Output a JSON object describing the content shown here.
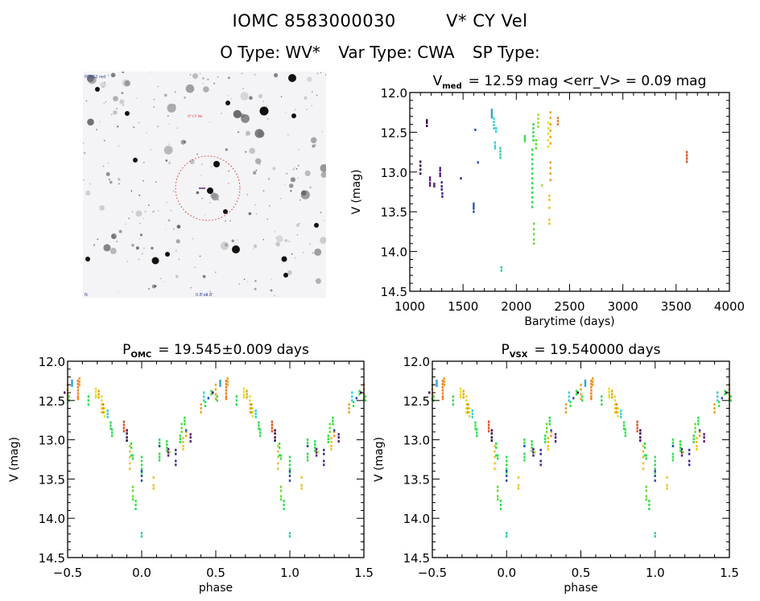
{
  "header": {
    "object_id": "IOMC 8583000030",
    "object_name": "V* CY Vel",
    "o_type_label": "O Type: WV*",
    "var_type_label": "Var Type: CWA",
    "sp_type_label": "SP Type:"
  },
  "finder_chart": {
    "label_top_left": "POSS2 red",
    "label_bottom_left": "N",
    "label_bottom_center": "0.8'x0.8'",
    "marker_label": "V* CY Vel",
    "circle_color": "#e03030",
    "marker_color": "#602080"
  },
  "colors": [
    "#3a0a4a",
    "#5a1a7a",
    "#3a2a9a",
    "#2a50b0",
    "#2aa0d0",
    "#30d0e0",
    "#30d090",
    "#30e050",
    "#60e030",
    "#a0e030",
    "#e0e020",
    "#f0c020",
    "#f0a020",
    "#f08020",
    "#e05020"
  ],
  "chart_data": [
    {
      "type": "scatter",
      "id": "lightcurve",
      "title_main": "V",
      "title_sub": "med",
      "title_rest": "= 12.59 mag <err_V> = 0.09 mag",
      "xlabel": "Barytime (days)",
      "ylabel": "V (mag)",
      "xlim": [
        1000,
        4000
      ],
      "ylim": [
        14.5,
        12.0
      ],
      "xticks": [
        1000,
        1500,
        2000,
        2500,
        3000,
        3500,
        4000
      ],
      "yticks": [
        12.0,
        12.5,
        13.0,
        13.5,
        14.0,
        14.5
      ],
      "ytick_labels": [
        "12.0",
        "12.5",
        "13.0",
        "13.5",
        "14.0",
        "14.5"
      ],
      "grid": false,
      "points": [
        {
          "x": 1100,
          "y": [
            12.87,
            12.92,
            12.97,
            13.02
          ],
          "c": 0
        },
        {
          "x": 1160,
          "y": [
            12.35,
            12.38,
            12.42
          ],
          "c": 0
        },
        {
          "x": 1190,
          "y": [
            13.07,
            13.1,
            13.14,
            13.17
          ],
          "c": 1
        },
        {
          "x": 1230,
          "y": [
            13.15,
            13.18
          ],
          "c": 1
        },
        {
          "x": 1285,
          "y": [
            12.95,
            12.98,
            13.02,
            13.05
          ],
          "c": 1
        },
        {
          "x": 1300,
          "y": [
            13.13,
            13.18,
            13.22
          ],
          "c": 2
        },
        {
          "x": 1305,
          "y": [
            13.27,
            13.31
          ],
          "c": 2
        },
        {
          "x": 1480,
          "y": [
            13.08
          ],
          "c": 2
        },
        {
          "x": 1600,
          "y": [
            13.4,
            13.43,
            13.46,
            13.5
          ],
          "c": 3
        },
        {
          "x": 1615,
          "y": [
            12.47
          ],
          "c": 3
        },
        {
          "x": 1640,
          "y": [
            12.88
          ],
          "c": 3
        },
        {
          "x": 1770,
          "y": [
            12.22,
            12.25,
            12.28,
            12.31
          ],
          "c": 4
        },
        {
          "x": 1790,
          "y": [
            12.33,
            12.37,
            12.41,
            12.45
          ],
          "c": 5
        },
        {
          "x": 1810,
          "y": [
            12.45,
            12.49
          ],
          "c": 5
        },
        {
          "x": 1800,
          "y": [
            12.63,
            12.67,
            12.7
          ],
          "c": 5
        },
        {
          "x": 1850,
          "y": [
            12.7,
            12.74,
            12.78,
            12.82
          ],
          "c": 6
        },
        {
          "x": 1860,
          "y": [
            14.2,
            14.24
          ],
          "c": 6
        },
        {
          "x": 2080,
          "y": [
            12.55,
            12.58,
            12.61
          ],
          "c": 7
        },
        {
          "x": 2150,
          "y": [
            12.72,
            12.78,
            12.84,
            12.9,
            12.96,
            13.02,
            13.08,
            13.14,
            13.2,
            13.26,
            13.32,
            13.38,
            13.44
          ],
          "c": 7
        },
        {
          "x": 2160,
          "y": [
            12.4,
            12.45,
            12.5,
            12.55,
            12.6
          ],
          "c": 7
        },
        {
          "x": 2165,
          "y": [
            13.65,
            13.72,
            13.78,
            13.85,
            13.9
          ],
          "c": 8
        },
        {
          "x": 2185,
          "y": [
            12.6,
            12.65,
            12.7
          ],
          "c": 8
        },
        {
          "x": 2205,
          "y": [
            12.28,
            12.33,
            12.38,
            12.43
          ],
          "c": 9
        },
        {
          "x": 2240,
          "y": [
            13.17
          ],
          "c": 9
        },
        {
          "x": 2300,
          "y": [
            12.38,
            12.45,
            12.52,
            12.6,
            12.68
          ],
          "c": 10
        },
        {
          "x": 2310,
          "y": [
            13.3,
            13.35,
            13.45,
            13.6,
            13.65
          ],
          "c": 11
        },
        {
          "x": 2320,
          "y": [
            12.25,
            12.32,
            12.4,
            12.48,
            12.56,
            12.64
          ],
          "c": 12
        },
        {
          "x": 2320,
          "y": [
            12.88,
            12.95,
            13.02,
            13.1
          ],
          "c": 12
        },
        {
          "x": 2390,
          "y": [
            12.32,
            12.36,
            12.4
          ],
          "c": 13
        },
        {
          "x": 3600,
          "y": [
            12.75,
            12.79,
            12.83,
            12.87
          ],
          "c": 14
        }
      ]
    },
    {
      "type": "scatter",
      "id": "phase_omc",
      "title_main": "P",
      "title_sub": "OMC",
      "title_rest": "= 19.545±0.009 days",
      "xlabel": "phase",
      "ylabel": "V (mag)",
      "xlim": [
        -0.5,
        1.5
      ],
      "ylim": [
        14.5,
        12.0
      ],
      "xticks": [
        -0.5,
        0.0,
        0.5,
        1.0,
        1.5
      ],
      "xtick_labels": [
        "−0.5",
        "0.0",
        "0.5",
        "1.0",
        "1.5"
      ],
      "yticks": [
        12.0,
        12.5,
        13.0,
        13.5,
        14.0,
        14.5
      ],
      "ytick_labels": [
        "12.0",
        "12.5",
        "13.0",
        "13.5",
        "14.0",
        "14.5"
      ],
      "grid": false
    },
    {
      "type": "scatter",
      "id": "phase_vsx",
      "title_main": "P",
      "title_sub": "VSX",
      "title_rest": "= 19.540000 days",
      "xlabel": "phase",
      "ylabel": "V (mag)",
      "xlim": [
        -0.5,
        1.5
      ],
      "ylim": [
        14.5,
        12.0
      ],
      "xticks": [
        -0.5,
        0.0,
        0.5,
        1.0,
        1.5
      ],
      "xtick_labels": [
        "−0.5",
        "0.0",
        "0.5",
        "1.0",
        "1.5"
      ],
      "yticks": [
        12.0,
        12.5,
        13.0,
        13.5,
        14.0,
        14.5
      ],
      "ytick_labels": [
        "12.0",
        "12.5",
        "13.0",
        "13.5",
        "14.0",
        "14.5"
      ],
      "grid": false
    }
  ],
  "phase_points": [
    {
      "p": -0.47,
      "y": [
        12.25,
        12.28,
        12.31
      ],
      "c": 4
    },
    {
      "p": -0.43,
      "y": [
        12.25,
        12.29,
        12.33,
        12.37,
        12.41,
        12.45,
        12.48
      ],
      "c": 13
    },
    {
      "p": -0.42,
      "y": [
        12.22,
        12.26,
        12.3
      ],
      "c": 12
    },
    {
      "p": -0.36,
      "y": [
        12.45,
        12.5,
        12.55
      ],
      "c": 7
    },
    {
      "p": -0.31,
      "y": [
        12.35,
        12.39,
        12.43,
        12.46
      ],
      "c": 10
    },
    {
      "p": -0.29,
      "y": [
        12.38,
        12.42,
        12.46
      ],
      "c": 12
    },
    {
      "p": -0.27,
      "y": [
        12.45,
        12.5,
        12.55,
        12.6,
        12.65
      ],
      "c": 10
    },
    {
      "p": -0.26,
      "y": [
        12.55,
        12.6,
        12.65
      ],
      "c": 13
    },
    {
      "p": -0.25,
      "y": [
        12.6,
        12.65,
        12.7
      ],
      "c": 10
    },
    {
      "p": -0.23,
      "y": [
        12.63,
        12.67,
        12.71
      ],
      "c": 5
    },
    {
      "p": -0.21,
      "y": [
        12.78,
        12.82,
        12.86
      ],
      "c": 7
    },
    {
      "p": -0.2,
      "y": [
        12.87,
        12.91,
        12.95
      ],
      "c": 7
    },
    {
      "p": -0.12,
      "y": [
        12.77,
        12.81,
        12.85,
        12.89
      ],
      "c": 14
    },
    {
      "p": -0.1,
      "y": [
        12.88,
        12.92,
        12.97,
        13.01
      ],
      "c": 0
    },
    {
      "p": -0.08,
      "y": [
        13.08,
        13.15,
        13.22,
        13.3,
        13.37
      ],
      "c": 11
    },
    {
      "p": -0.07,
      "y": [
        13.05,
        13.1,
        13.2
      ],
      "c": 7
    },
    {
      "p": -0.06,
      "y": [
        13.2,
        13.24
      ],
      "c": 7
    },
    {
      "p": -0.06,
      "y": [
        13.6,
        13.65,
        13.72,
        13.76
      ],
      "c": 8
    },
    {
      "p": -0.04,
      "y": [
        13.78,
        13.83,
        13.88
      ],
      "c": 7
    },
    {
      "p": 0.0,
      "y": [
        13.22,
        13.27,
        13.32,
        13.37,
        13.42
      ],
      "c": 7
    },
    {
      "p": 0.0,
      "y": [
        13.4,
        13.46,
        13.52
      ],
      "c": 3
    },
    {
      "p": 0.0,
      "y": [
        14.19,
        14.23
      ],
      "c": 6
    },
    {
      "p": 0.08,
      "y": [
        13.48,
        13.58,
        13.62
      ],
      "c": 11
    },
    {
      "p": 0.12,
      "y": [
        13.0,
        13.04,
        13.08
      ],
      "c": 7
    },
    {
      "p": 0.12,
      "y": [
        13.18,
        13.22,
        13.26
      ],
      "c": 7
    },
    {
      "p": 0.12,
      "y": [
        13.08
      ],
      "c": 3
    },
    {
      "p": 0.17,
      "y": [
        13.02,
        13.06,
        13.1,
        13.14
      ],
      "c": 7
    },
    {
      "p": 0.18,
      "y": [
        13.12,
        13.16,
        13.2
      ],
      "c": 1
    },
    {
      "p": 0.19,
      "y": [
        13.16
      ],
      "c": 9
    },
    {
      "p": 0.23,
      "y": [
        13.13,
        13.18
      ],
      "c": 2
    },
    {
      "p": 0.23,
      "y": [
        13.27,
        13.32
      ],
      "c": 2
    },
    {
      "p": 0.26,
      "y": [
        12.95,
        12.99,
        13.03
      ],
      "c": 7
    },
    {
      "p": 0.27,
      "y": [
        12.8,
        12.85,
        12.9
      ],
      "c": 8
    },
    {
      "p": 0.28,
      "y": [
        12.98,
        13.03,
        13.08,
        13.12
      ],
      "c": 11
    },
    {
      "p": 0.29,
      "y": [
        12.72,
        12.76,
        12.8
      ],
      "c": 7
    },
    {
      "p": 0.3,
      "y": [
        12.9,
        12.95
      ],
      "c": 12
    },
    {
      "p": 0.3,
      "y": [
        12.88
      ],
      "c": 3
    },
    {
      "p": 0.33,
      "y": [
        12.93,
        12.97,
        13.02
      ],
      "c": 1
    },
    {
      "p": 0.4,
      "y": [
        12.55,
        12.6,
        12.65
      ],
      "c": 12
    },
    {
      "p": 0.42,
      "y": [
        12.4,
        12.45,
        12.5
      ],
      "c": 5
    },
    {
      "p": 0.43,
      "y": [
        12.52,
        12.57
      ],
      "c": 7
    },
    {
      "p": 0.45,
      "y": [
        12.47
      ],
      "c": 3
    },
    {
      "p": 0.47,
      "y": [
        12.38,
        12.42
      ],
      "c": 7
    },
    {
      "p": 0.48,
      "y": [
        12.4
      ],
      "c": 0
    },
    {
      "p": 0.5,
      "y": [
        12.3,
        12.36,
        12.42,
        12.48
      ],
      "c": 12
    },
    {
      "p": 0.51,
      "y": [
        12.45,
        12.5
      ],
      "c": 7
    }
  ]
}
